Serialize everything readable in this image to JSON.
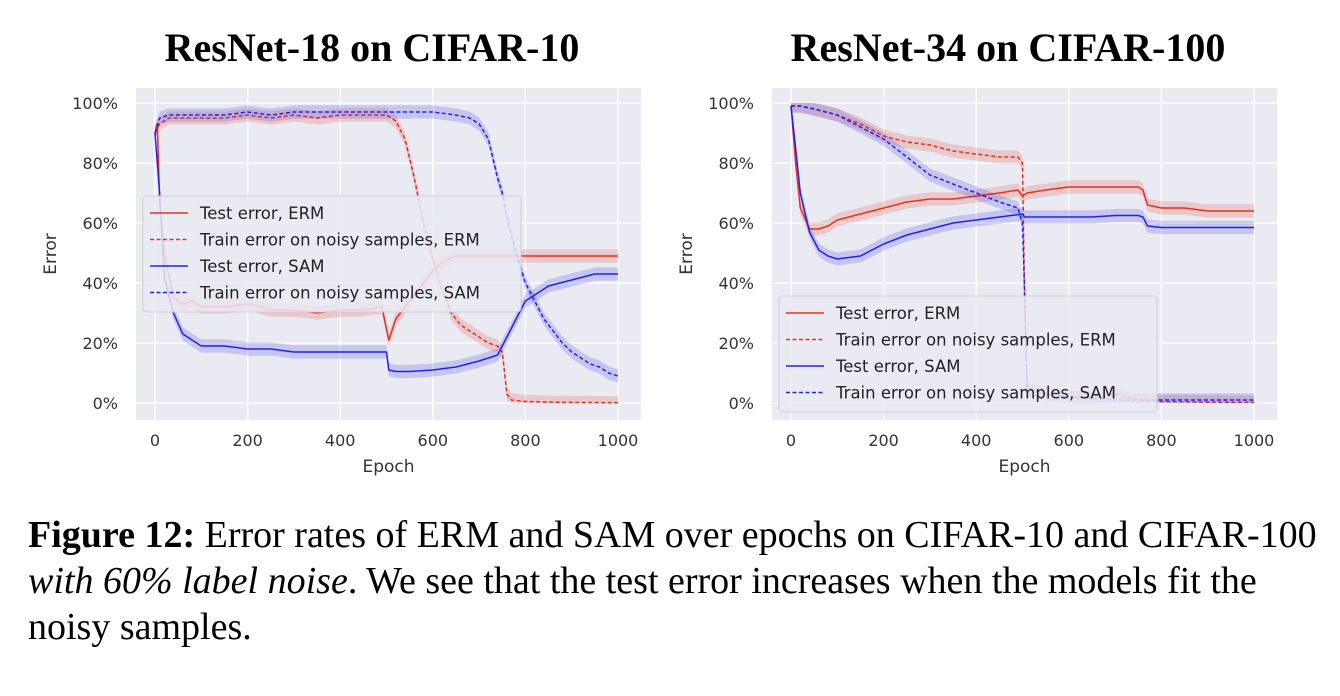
{
  "chart_data": [
    {
      "type": "line",
      "title": "ResNet-18 on CIFAR-10",
      "xlabel": "Epoch",
      "ylabel": "Error",
      "xlim": [
        0,
        1000
      ],
      "ylim": [
        0,
        100
      ],
      "x_ticks": [
        0,
        200,
        400,
        600,
        800,
        1000
      ],
      "x_tick_labels": [
        "0",
        "200",
        "400",
        "600",
        "800",
        "1000"
      ],
      "y_ticks": [
        0,
        20,
        40,
        60,
        80,
        100
      ],
      "y_tick_labels": [
        "0%",
        "20%",
        "40%",
        "60%",
        "80%",
        "100%"
      ],
      "legend_position": "center-left",
      "series": [
        {
          "name": "Test error, ERM",
          "color": "#e8301f",
          "dash": "solid",
          "points": [
            [
              0,
              90
            ],
            [
              5,
              93
            ],
            [
              10,
              68
            ],
            [
              20,
              50
            ],
            [
              40,
              35
            ],
            [
              60,
              33
            ],
            [
              80,
              34
            ],
            [
              100,
              32
            ],
            [
              150,
              32
            ],
            [
              200,
              33
            ],
            [
              250,
              31
            ],
            [
              300,
              31
            ],
            [
              350,
              30
            ],
            [
              400,
              31
            ],
            [
              450,
              31
            ],
            [
              490,
              32
            ],
            [
              505,
              21
            ],
            [
              520,
              28
            ],
            [
              540,
              32
            ],
            [
              560,
              36
            ],
            [
              580,
              40
            ],
            [
              600,
              44
            ],
            [
              620,
              47
            ],
            [
              650,
              49
            ],
            [
              700,
              49
            ],
            [
              750,
              49
            ],
            [
              800,
              49
            ],
            [
              850,
              49
            ],
            [
              900,
              49
            ],
            [
              950,
              49
            ],
            [
              1000,
              49
            ]
          ]
        },
        {
          "name": "Train error on noisy samples, ERM",
          "color": "#e8301f",
          "dash": "dashed",
          "points": [
            [
              0,
              90
            ],
            [
              10,
              93
            ],
            [
              30,
              95
            ],
            [
              60,
              95
            ],
            [
              100,
              95
            ],
            [
              150,
              95
            ],
            [
              200,
              96
            ],
            [
              250,
              95
            ],
            [
              300,
              96
            ],
            [
              350,
              95
            ],
            [
              400,
              96
            ],
            [
              450,
              96
            ],
            [
              500,
              96
            ],
            [
              520,
              94
            ],
            [
              540,
              88
            ],
            [
              560,
              75
            ],
            [
              580,
              60
            ],
            [
              600,
              48
            ],
            [
              620,
              38
            ],
            [
              640,
              30
            ],
            [
              660,
              26
            ],
            [
              680,
              24
            ],
            [
              700,
              22
            ],
            [
              720,
              20
            ],
            [
              740,
              19
            ],
            [
              750,
              17
            ],
            [
              755,
              10
            ],
            [
              760,
              3
            ],
            [
              770,
              1
            ],
            [
              800,
              0.5
            ],
            [
              850,
              0.3
            ],
            [
              900,
              0.2
            ],
            [
              1000,
              0.1
            ]
          ]
        },
        {
          "name": "Test error, SAM",
          "color": "#1f24e8",
          "dash": "solid",
          "points": [
            [
              0,
              90
            ],
            [
              10,
              70
            ],
            [
              20,
              42
            ],
            [
              40,
              30
            ],
            [
              60,
              23
            ],
            [
              80,
              21
            ],
            [
              100,
              19
            ],
            [
              150,
              19
            ],
            [
              200,
              18
            ],
            [
              250,
              18
            ],
            [
              300,
              17
            ],
            [
              350,
              17
            ],
            [
              400,
              17
            ],
            [
              450,
              17
            ],
            [
              500,
              17
            ],
            [
              505,
              11
            ],
            [
              520,
              10.5
            ],
            [
              550,
              10.5
            ],
            [
              600,
              11
            ],
            [
              650,
              12
            ],
            [
              700,
              14
            ],
            [
              740,
              16
            ],
            [
              760,
              22
            ],
            [
              780,
              28
            ],
            [
              800,
              34
            ],
            [
              850,
              39
            ],
            [
              900,
              41
            ],
            [
              950,
              43
            ],
            [
              1000,
              43
            ]
          ]
        },
        {
          "name": "Train error on noisy samples, SAM",
          "color": "#1f24e8",
          "dash": "dashed",
          "points": [
            [
              0,
              90
            ],
            [
              10,
              95
            ],
            [
              30,
              96
            ],
            [
              60,
              96
            ],
            [
              100,
              96
            ],
            [
              150,
              96
            ],
            [
              200,
              97
            ],
            [
              250,
              96
            ],
            [
              300,
              97
            ],
            [
              350,
              97
            ],
            [
              400,
              97
            ],
            [
              450,
              97
            ],
            [
              500,
              97
            ],
            [
              550,
              97
            ],
            [
              600,
              97
            ],
            [
              650,
              96
            ],
            [
              680,
              95
            ],
            [
              700,
              93
            ],
            [
              720,
              88
            ],
            [
              740,
              75
            ],
            [
              750,
              70
            ],
            [
              760,
              62
            ],
            [
              780,
              50
            ],
            [
              800,
              40
            ],
            [
              820,
              34
            ],
            [
              840,
              28
            ],
            [
              860,
              24
            ],
            [
              880,
              20
            ],
            [
              900,
              17
            ],
            [
              920,
              15
            ],
            [
              940,
              13
            ],
            [
              960,
              12
            ],
            [
              980,
              10
            ],
            [
              1000,
              9
            ]
          ]
        }
      ]
    },
    {
      "type": "line",
      "title": "ResNet-34 on CIFAR-100",
      "xlabel": "Epoch",
      "ylabel": "Error",
      "xlim": [
        0,
        1000
      ],
      "ylim": [
        0,
        100
      ],
      "x_ticks": [
        0,
        200,
        400,
        600,
        800,
        1000
      ],
      "x_tick_labels": [
        "0",
        "200",
        "400",
        "600",
        "800",
        "1000"
      ],
      "y_ticks": [
        0,
        20,
        40,
        60,
        80,
        100
      ],
      "y_tick_labels": [
        "0%",
        "20%",
        "40%",
        "60%",
        "80%",
        "100%"
      ],
      "legend_position": "lower-left",
      "series": [
        {
          "name": "Test error, ERM",
          "color": "#e8301f",
          "dash": "solid",
          "points": [
            [
              0,
              99
            ],
            [
              10,
              80
            ],
            [
              20,
              65
            ],
            [
              40,
              58
            ],
            [
              60,
              58
            ],
            [
              80,
              59
            ],
            [
              100,
              61
            ],
            [
              150,
              63
            ],
            [
              200,
              65
            ],
            [
              250,
              67
            ],
            [
              300,
              68
            ],
            [
              350,
              68
            ],
            [
              400,
              69
            ],
            [
              450,
              70
            ],
            [
              490,
              71
            ],
            [
              500,
              69
            ],
            [
              510,
              70
            ],
            [
              550,
              71
            ],
            [
              600,
              72
            ],
            [
              650,
              72
            ],
            [
              700,
              72
            ],
            [
              750,
              72
            ],
            [
              760,
              71
            ],
            [
              770,
              66
            ],
            [
              800,
              65
            ],
            [
              850,
              65
            ],
            [
              900,
              64
            ],
            [
              950,
              64
            ],
            [
              1000,
              64
            ]
          ]
        },
        {
          "name": "Train error on noisy samples, ERM",
          "color": "#e8301f",
          "dash": "dashed",
          "points": [
            [
              0,
              99
            ],
            [
              20,
              99
            ],
            [
              50,
              98
            ],
            [
              100,
              96
            ],
            [
              150,
              93
            ],
            [
              200,
              89
            ],
            [
              250,
              87
            ],
            [
              300,
              86
            ],
            [
              350,
              84
            ],
            [
              400,
              83
            ],
            [
              450,
              82
            ],
            [
              490,
              82
            ],
            [
              500,
              80
            ],
            [
              505,
              30
            ],
            [
              510,
              4
            ],
            [
              550,
              3
            ],
            [
              600,
              2
            ],
            [
              650,
              2
            ],
            [
              700,
              3
            ],
            [
              750,
              1
            ],
            [
              800,
              0.5
            ],
            [
              900,
              0.3
            ],
            [
              1000,
              0.2
            ]
          ]
        },
        {
          "name": "Test error, SAM",
          "color": "#1f24e8",
          "dash": "solid",
          "points": [
            [
              0,
              99
            ],
            [
              10,
              85
            ],
            [
              20,
              70
            ],
            [
              40,
              57
            ],
            [
              60,
              51
            ],
            [
              80,
              49
            ],
            [
              100,
              48
            ],
            [
              150,
              49
            ],
            [
              200,
              53
            ],
            [
              250,
              56
            ],
            [
              300,
              58
            ],
            [
              350,
              60
            ],
            [
              400,
              61
            ],
            [
              450,
              62
            ],
            [
              500,
              63
            ],
            [
              505,
              62
            ],
            [
              550,
              62
            ],
            [
              600,
              62
            ],
            [
              650,
              62
            ],
            [
              700,
              62.5
            ],
            [
              750,
              62.5
            ],
            [
              760,
              62
            ],
            [
              770,
              59
            ],
            [
              800,
              58.5
            ],
            [
              900,
              58.5
            ],
            [
              1000,
              58.5
            ]
          ]
        },
        {
          "name": "Train error on noisy samples, SAM",
          "color": "#1f24e8",
          "dash": "dashed",
          "points": [
            [
              0,
              99
            ],
            [
              20,
              99
            ],
            [
              50,
              98
            ],
            [
              100,
              96
            ],
            [
              150,
              92
            ],
            [
              200,
              88
            ],
            [
              250,
              82
            ],
            [
              300,
              76
            ],
            [
              350,
              73
            ],
            [
              400,
              70
            ],
            [
              450,
              67
            ],
            [
              490,
              65
            ],
            [
              500,
              60
            ],
            [
              505,
              35
            ],
            [
              510,
              5
            ],
            [
              550,
              3
            ],
            [
              600,
              2
            ],
            [
              700,
              1
            ],
            [
              800,
              1
            ],
            [
              900,
              1
            ],
            [
              1000,
              1
            ]
          ]
        }
      ]
    }
  ],
  "figure_caption": {
    "label": "Figure 12:",
    "text_plain_1": " Error rates of ERM and SAM over epochs on CIFAR-10 and CIFAR-100 ",
    "text_italic": "with 60% label noise",
    "text_plain_2": ". We see that the test error increases when the models fit the noisy samples."
  }
}
